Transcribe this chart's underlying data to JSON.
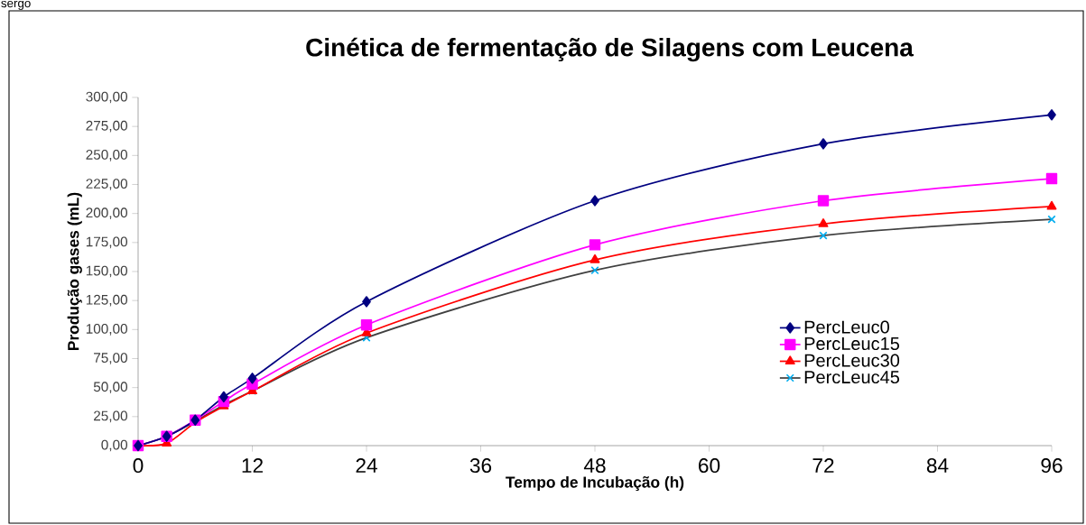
{
  "chart_data": {
    "type": "line",
    "title": "Cinética de fermentação de Silagens com Leucena",
    "xlabel": "Tempo de Incubação (h)",
    "ylabel": "Produção gases (mL)",
    "annotations": [
      "sergo"
    ],
    "x": [
      0,
      3,
      6,
      9,
      12,
      24,
      48,
      72,
      96
    ],
    "series": [
      {
        "name": "PercLeuc0",
        "color": "#000080",
        "marker": "diamond",
        "values": [
          0,
          8,
          22,
          42,
          58,
          124,
          211,
          260,
          285
        ]
      },
      {
        "name": "PercLeuc15",
        "color": "#ff00ff",
        "marker": "square",
        "values": [
          0,
          8,
          22,
          38,
          53,
          104,
          173,
          211,
          230
        ]
      },
      {
        "name": "PercLeuc30",
        "color": "#ff0000",
        "marker": "triangle",
        "values": [
          0,
          2,
          20,
          34,
          47,
          97,
          160,
          191,
          206
        ]
      },
      {
        "name": "PercLeuc45",
        "color": "#404040",
        "marker": "cross",
        "values": [
          0,
          8,
          21,
          35,
          47,
          93,
          151,
          181,
          195
        ]
      }
    ],
    "xlim": [
      0,
      96
    ],
    "xticks": [
      0,
      12,
      24,
      36,
      48,
      60,
      72,
      84,
      96
    ],
    "ylim": [
      0,
      300
    ],
    "yticks": [
      {
        "value": 0,
        "label": "0,00"
      },
      {
        "value": 25,
        "label": "25,00"
      },
      {
        "value": 50,
        "label": "50,00"
      },
      {
        "value": 75,
        "label": "75,00"
      },
      {
        "value": 100,
        "label": "100,00"
      },
      {
        "value": 125,
        "label": "125,00"
      },
      {
        "value": 150,
        "label": "150,00"
      },
      {
        "value": 175,
        "label": "175,00"
      },
      {
        "value": 200,
        "label": "200,00"
      },
      {
        "value": 225,
        "label": "225,00"
      },
      {
        "value": 250,
        "label": "250,00"
      },
      {
        "value": 275,
        "label": "275,00"
      },
      {
        "value": 300,
        "label": "300,00"
      }
    ],
    "grid": false,
    "legend": "bottom right"
  }
}
